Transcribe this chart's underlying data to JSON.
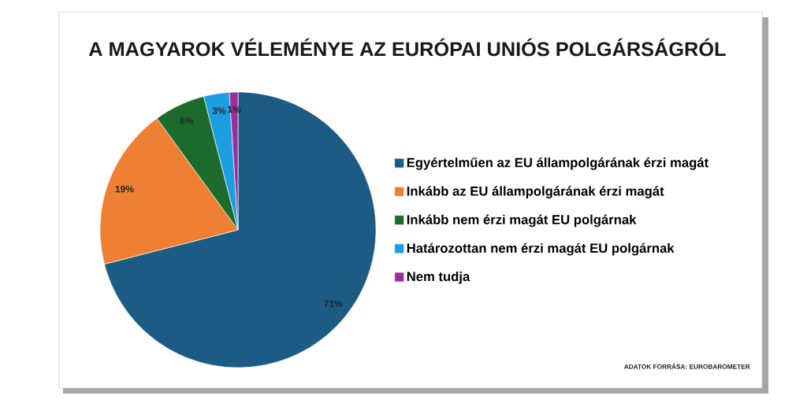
{
  "chart_data": {
    "type": "pie",
    "title": "A MAGYAROK VÉLEMÉNYE AZ EURÓPAI UNIÓS POLGÁRSÁGRÓL",
    "categories": [
      "Egyértelműen az EU állampolgárának érzi magát",
      "Inkább az EU állampolgárának érzi magát",
      "Inkább nem érzi magát EU polgárnak",
      "Határozottan nem érzi magát EU polgárnak",
      "Nem tudja"
    ],
    "values": [
      71,
      19,
      6,
      3,
      1
    ],
    "colors": [
      "#1b5b84",
      "#ee7f33",
      "#1d6b2c",
      "#1b9fe0",
      "#9c2e9c"
    ],
    "value_labels": [
      "71%",
      "19%",
      "6%",
      "3%",
      "1%"
    ],
    "legend": "right",
    "annotations": [
      "ADATOK FORRÁSA: EUROBAROMETER"
    ]
  }
}
